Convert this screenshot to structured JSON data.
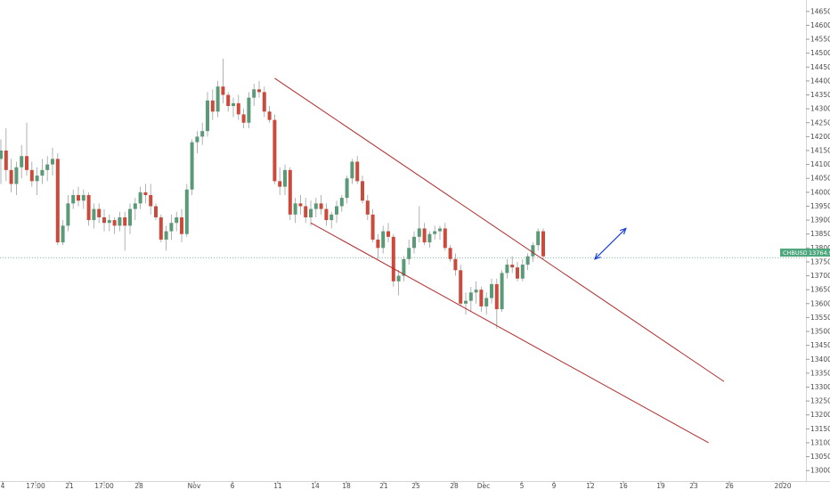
{
  "chart_data": {
    "type": "candlestick",
    "symbol_tag": "CHBUSD",
    "last_price_label": "13764.9",
    "last_price": 13764.9,
    "ylim": [
      12975,
      14675
    ],
    "y_ticks": [
      14650.0,
      14600.0,
      14550.0,
      14500.0,
      14450.0,
      14400.0,
      14350.0,
      14300.0,
      14250.0,
      14200.0,
      14150.0,
      14100.0,
      14050.0,
      14000.0,
      13950.0,
      13900.0,
      13850.0,
      13800.0,
      13750.0,
      13700.0,
      13650.0,
      13600.0,
      13550.0,
      13500.0,
      13450.0,
      13400.0,
      13350.0,
      13300.0,
      13250.0,
      13200.0,
      13150.0,
      13100.0,
      13050.0,
      13000.0
    ],
    "x_ticks": [
      "4",
      "17:00",
      "21",
      "17:00",
      "28",
      "Nov",
      "6",
      "11",
      "14",
      "18",
      "21",
      "25",
      "28",
      "Dec",
      "5",
      "9",
      "12",
      "16",
      "19",
      "23",
      "26",
      "2020"
    ],
    "up_color": "#5b9a78",
    "down_color": "#cc4a3c",
    "channel_color": "#b22a2a",
    "projection_arrow_color": "#1a3fd6",
    "candles": [
      [
        14120,
        14190,
        14030,
        14150
      ],
      [
        14150,
        14230,
        14040,
        14080
      ],
      [
        14080,
        14120,
        14000,
        14030
      ],
      [
        14030,
        14110,
        13990,
        14090
      ],
      [
        14090,
        14170,
        14050,
        14130
      ],
      [
        14130,
        14250,
        14060,
        14080
      ],
      [
        14080,
        14110,
        14020,
        14040
      ],
      [
        14040,
        14090,
        13990,
        14060
      ],
      [
        14060,
        14120,
        14030,
        14080
      ],
      [
        14080,
        14130,
        14040,
        14100
      ],
      [
        14100,
        14160,
        14060,
        14120
      ],
      [
        14120,
        14140,
        13810,
        13820
      ],
      [
        13820,
        13900,
        13810,
        13880
      ],
      [
        13880,
        13990,
        13860,
        13960
      ],
      [
        13960,
        14010,
        13940,
        13990
      ],
      [
        13990,
        14020,
        13950,
        13970
      ],
      [
        13970,
        14010,
        13940,
        13990
      ],
      [
        13990,
        14000,
        13880,
        13900
      ],
      [
        13900,
        13960,
        13870,
        13940
      ],
      [
        13940,
        13960,
        13890,
        13910
      ],
      [
        13910,
        13940,
        13860,
        13890
      ],
      [
        13890,
        13920,
        13860,
        13900
      ],
      [
        13900,
        13910,
        13850,
        13880
      ],
      [
        13880,
        13930,
        13860,
        13910
      ],
      [
        13910,
        13930,
        13790,
        13880
      ],
      [
        13880,
        13960,
        13850,
        13940
      ],
      [
        13940,
        13980,
        13900,
        13960
      ],
      [
        13960,
        14020,
        13940,
        14000
      ],
      [
        14000,
        14030,
        13960,
        13990
      ],
      [
        13990,
        14030,
        13920,
        13950
      ],
      [
        13950,
        13960,
        13900,
        13910
      ],
      [
        13910,
        13920,
        13820,
        13830
      ],
      [
        13830,
        13880,
        13790,
        13860
      ],
      [
        13860,
        13920,
        13830,
        13890
      ],
      [
        13890,
        13930,
        13860,
        13910
      ],
      [
        13910,
        13940,
        13820,
        13850
      ],
      [
        13850,
        14030,
        13840,
        14010
      ],
      [
        14010,
        14190,
        13990,
        14180
      ],
      [
        14180,
        14220,
        14140,
        14200
      ],
      [
        14200,
        14250,
        14170,
        14220
      ],
      [
        14220,
        14360,
        14200,
        14330
      ],
      [
        14330,
        14370,
        14260,
        14290
      ],
      [
        14290,
        14400,
        14270,
        14380
      ],
      [
        14380,
        14480,
        14320,
        14350
      ],
      [
        14350,
        14360,
        14290,
        14310
      ],
      [
        14310,
        14340,
        14270,
        14320
      ],
      [
        14320,
        14350,
        14260,
        14280
      ],
      [
        14280,
        14300,
        14230,
        14250
      ],
      [
        14250,
        14360,
        14230,
        14340
      ],
      [
        14340,
        14390,
        14310,
        14370
      ],
      [
        14370,
        14400,
        14340,
        14360
      ],
      [
        14360,
        14380,
        14270,
        14290
      ],
      [
        14290,
        14310,
        14250,
        14260
      ],
      [
        14260,
        14280,
        14030,
        14040
      ],
      [
        14040,
        14090,
        13990,
        14020
      ],
      [
        14020,
        14100,
        13990,
        14080
      ],
      [
        14080,
        14090,
        13900,
        13920
      ],
      [
        13920,
        13980,
        13890,
        13960
      ],
      [
        13960,
        13990,
        13920,
        13950
      ],
      [
        13950,
        13980,
        13890,
        13910
      ],
      [
        13910,
        13970,
        13880,
        13940
      ],
      [
        13940,
        13980,
        13910,
        13960
      ],
      [
        13960,
        13990,
        13920,
        13940
      ],
      [
        13940,
        13960,
        13880,
        13900
      ],
      [
        13900,
        13930,
        13870,
        13920
      ],
      [
        13920,
        13970,
        13890,
        13950
      ],
      [
        13950,
        13990,
        13930,
        13980
      ],
      [
        13980,
        14060,
        13960,
        14050
      ],
      [
        14050,
        14120,
        14030,
        14110
      ],
      [
        14110,
        14130,
        14030,
        14040
      ],
      [
        14040,
        14060,
        13960,
        13970
      ],
      [
        13970,
        13990,
        13900,
        13920
      ],
      [
        13920,
        13940,
        13820,
        13830
      ],
      [
        13830,
        13850,
        13760,
        13800
      ],
      [
        13800,
        13880,
        13780,
        13860
      ],
      [
        13860,
        13890,
        13820,
        13840
      ],
      [
        13840,
        13850,
        13660,
        13680
      ],
      [
        13680,
        13720,
        13630,
        13700
      ],
      [
        13700,
        13770,
        13680,
        13760
      ],
      [
        13760,
        13830,
        13740,
        13800
      ],
      [
        13800,
        13860,
        13780,
        13840
      ],
      [
        13840,
        13950,
        13820,
        13870
      ],
      [
        13870,
        13890,
        13810,
        13820
      ],
      [
        13820,
        13860,
        13800,
        13850
      ],
      [
        13850,
        13880,
        13830,
        13860
      ],
      [
        13860,
        13880,
        13830,
        13870
      ],
      [
        13870,
        13890,
        13790,
        13800
      ],
      [
        13800,
        13810,
        13750,
        13760
      ],
      [
        13760,
        13780,
        13700,
        13720
      ],
      [
        13720,
        13740,
        13590,
        13600
      ],
      [
        13600,
        13640,
        13560,
        13610
      ],
      [
        13610,
        13660,
        13570,
        13640
      ],
      [
        13640,
        13680,
        13600,
        13650
      ],
      [
        13650,
        13660,
        13570,
        13590
      ],
      [
        13590,
        13640,
        13560,
        13620
      ],
      [
        13620,
        13690,
        13600,
        13670
      ],
      [
        13670,
        13690,
        13510,
        13580
      ],
      [
        13580,
        13720,
        13570,
        13710
      ],
      [
        13710,
        13760,
        13690,
        13740
      ],
      [
        13740,
        13770,
        13710,
        13730
      ],
      [
        13730,
        13750,
        13680,
        13690
      ],
      [
        13690,
        13760,
        13680,
        13740
      ],
      [
        13740,
        13780,
        13720,
        13770
      ],
      [
        13770,
        13820,
        13750,
        13810
      ],
      [
        13810,
        13870,
        13790,
        13860
      ],
      [
        13860,
        13870,
        13760,
        13770
      ]
    ],
    "channel_upper": {
      "p1": [
        "bar",
        53,
        14410
      ],
      "p2": [
        "bar",
        140,
        13320
      ]
    },
    "channel_lower": {
      "p1": [
        "bar",
        60,
        13890
      ],
      "p2": [
        "bar",
        137,
        13100
      ]
    },
    "projection_arrow": {
      "from": [
        "bar",
        115,
        13760
      ],
      "to": [
        "bar",
        121,
        13870
      ]
    }
  }
}
